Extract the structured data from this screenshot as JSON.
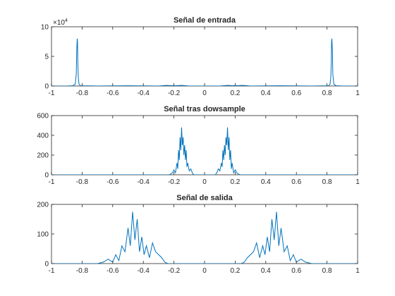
{
  "colors": {
    "line": "#0072BD",
    "axis": "#262626",
    "background": "#ffffff"
  },
  "chart_data": [
    {
      "type": "line",
      "title": "Señal de entrada",
      "xlim": [
        -1,
        1
      ],
      "ylim": [
        0,
        100000
      ],
      "xticks": [
        -1,
        -0.8,
        -0.6,
        -0.4,
        -0.2,
        0,
        0.2,
        0.4,
        0.6,
        0.8,
        1
      ],
      "xtick_labels": [
        "-1",
        "-0.8",
        "-0.6",
        "-0.4",
        "-0.2",
        "0",
        "0.2",
        "0.4",
        "0.6",
        "0.8",
        "1"
      ],
      "yticks": [
        0,
        50000,
        100000
      ],
      "ytick_labels": [
        "0",
        "5",
        "10"
      ],
      "y_exponent_base": "×10",
      "y_exponent_power": "4",
      "grid": false,
      "series": [
        {
          "x": [
            -1,
            -0.9,
            -0.86,
            -0.845,
            -0.838,
            -0.835,
            -0.832,
            -0.83,
            -0.828,
            -0.825,
            -0.82,
            -0.81,
            -0.7,
            -0.5,
            -0.3,
            -0.25,
            -0.2,
            -0.15,
            -0.1,
            0,
            0.1,
            0.15,
            0.2,
            0.25,
            0.3,
            0.5,
            0.7,
            0.81,
            0.82,
            0.825,
            0.828,
            0.83,
            0.832,
            0.835,
            0.838,
            0.845,
            0.86,
            0.9,
            1
          ],
          "y": [
            0,
            0,
            500,
            3000,
            20000,
            60000,
            80000,
            75000,
            40000,
            15000,
            3000,
            500,
            0,
            500,
            0,
            1000,
            500,
            1000,
            0,
            0,
            0,
            1000,
            500,
            1000,
            0,
            500,
            0,
            500,
            3000,
            15000,
            40000,
            75000,
            80000,
            60000,
            20000,
            3000,
            500,
            0,
            0
          ]
        }
      ]
    },
    {
      "type": "line",
      "title": "Señal tras dowsample",
      "xlim": [
        -1,
        1
      ],
      "ylim": [
        0,
        600
      ],
      "xticks": [
        -1,
        -0.8,
        -0.6,
        -0.4,
        -0.2,
        0,
        0.2,
        0.4,
        0.6,
        0.8,
        1
      ],
      "xtick_labels": [
        "-1",
        "-0.8",
        "-0.6",
        "-0.4",
        "-0.2",
        "0",
        "0.2",
        "0.4",
        "0.6",
        "0.8",
        "1"
      ],
      "yticks": [
        0,
        200,
        400,
        600
      ],
      "ytick_labels": [
        "0",
        "200",
        "400",
        "600"
      ],
      "grid": false,
      "series": [
        {
          "x": [
            -1,
            -0.23,
            -0.21,
            -0.2,
            -0.19,
            -0.18,
            -0.175,
            -0.17,
            -0.165,
            -0.16,
            -0.155,
            -0.15,
            -0.145,
            -0.14,
            -0.135,
            -0.13,
            -0.125,
            -0.12,
            -0.115,
            -0.11,
            -0.1,
            -0.09,
            -0.08,
            -0.07,
            0.07,
            0.08,
            0.09,
            0.1,
            0.11,
            0.115,
            0.12,
            0.125,
            0.13,
            0.135,
            0.14,
            0.145,
            0.15,
            0.155,
            0.16,
            0.165,
            0.17,
            0.175,
            0.18,
            0.19,
            0.2,
            0.21,
            0.23,
            1
          ],
          "y": [
            0,
            0,
            20,
            50,
            20,
            120,
            60,
            250,
            150,
            380,
            250,
            480,
            300,
            380,
            200,
            300,
            150,
            250,
            80,
            120,
            40,
            60,
            20,
            0,
            0,
            20,
            60,
            40,
            120,
            80,
            250,
            150,
            300,
            200,
            380,
            300,
            480,
            250,
            380,
            150,
            250,
            60,
            120,
            20,
            50,
            20,
            0,
            0
          ]
        }
      ]
    },
    {
      "type": "line",
      "title": "Señal de salida",
      "xlim": [
        -1,
        1
      ],
      "ylim": [
        0,
        200
      ],
      "xticks": [
        -1,
        -0.8,
        -0.6,
        -0.4,
        -0.2,
        0,
        0.2,
        0.4,
        0.6,
        0.8,
        1
      ],
      "xtick_labels": [
        "-1",
        "-0.8",
        "-0.6",
        "-0.4",
        "-0.2",
        "0",
        "0.2",
        "0.4",
        "0.6",
        "0.8",
        "1"
      ],
      "yticks": [
        0,
        100,
        200
      ],
      "ytick_labels": [
        "0",
        "100",
        "200"
      ],
      "grid": false,
      "series": [
        {
          "x": [
            -1,
            -0.7,
            -0.66,
            -0.63,
            -0.6,
            -0.58,
            -0.56,
            -0.54,
            -0.52,
            -0.5,
            -0.485,
            -0.47,
            -0.455,
            -0.44,
            -0.425,
            -0.41,
            -0.395,
            -0.38,
            -0.36,
            -0.34,
            -0.32,
            -0.3,
            -0.28,
            -0.26,
            -0.24,
            0.24,
            0.26,
            0.28,
            0.3,
            0.32,
            0.34,
            0.36,
            0.38,
            0.395,
            0.41,
            0.425,
            0.44,
            0.455,
            0.47,
            0.485,
            0.5,
            0.52,
            0.54,
            0.56,
            0.58,
            0.6,
            0.63,
            0.66,
            0.7,
            1
          ],
          "y": [
            0,
            0,
            5,
            15,
            5,
            30,
            10,
            60,
            40,
            120,
            60,
            175,
            80,
            150,
            40,
            90,
            30,
            60,
            20,
            70,
            40,
            30,
            20,
            5,
            0,
            0,
            5,
            20,
            30,
            40,
            70,
            20,
            60,
            30,
            90,
            40,
            150,
            80,
            175,
            60,
            120,
            40,
            60,
            10,
            30,
            5,
            15,
            5,
            0,
            0
          ]
        }
      ]
    }
  ]
}
